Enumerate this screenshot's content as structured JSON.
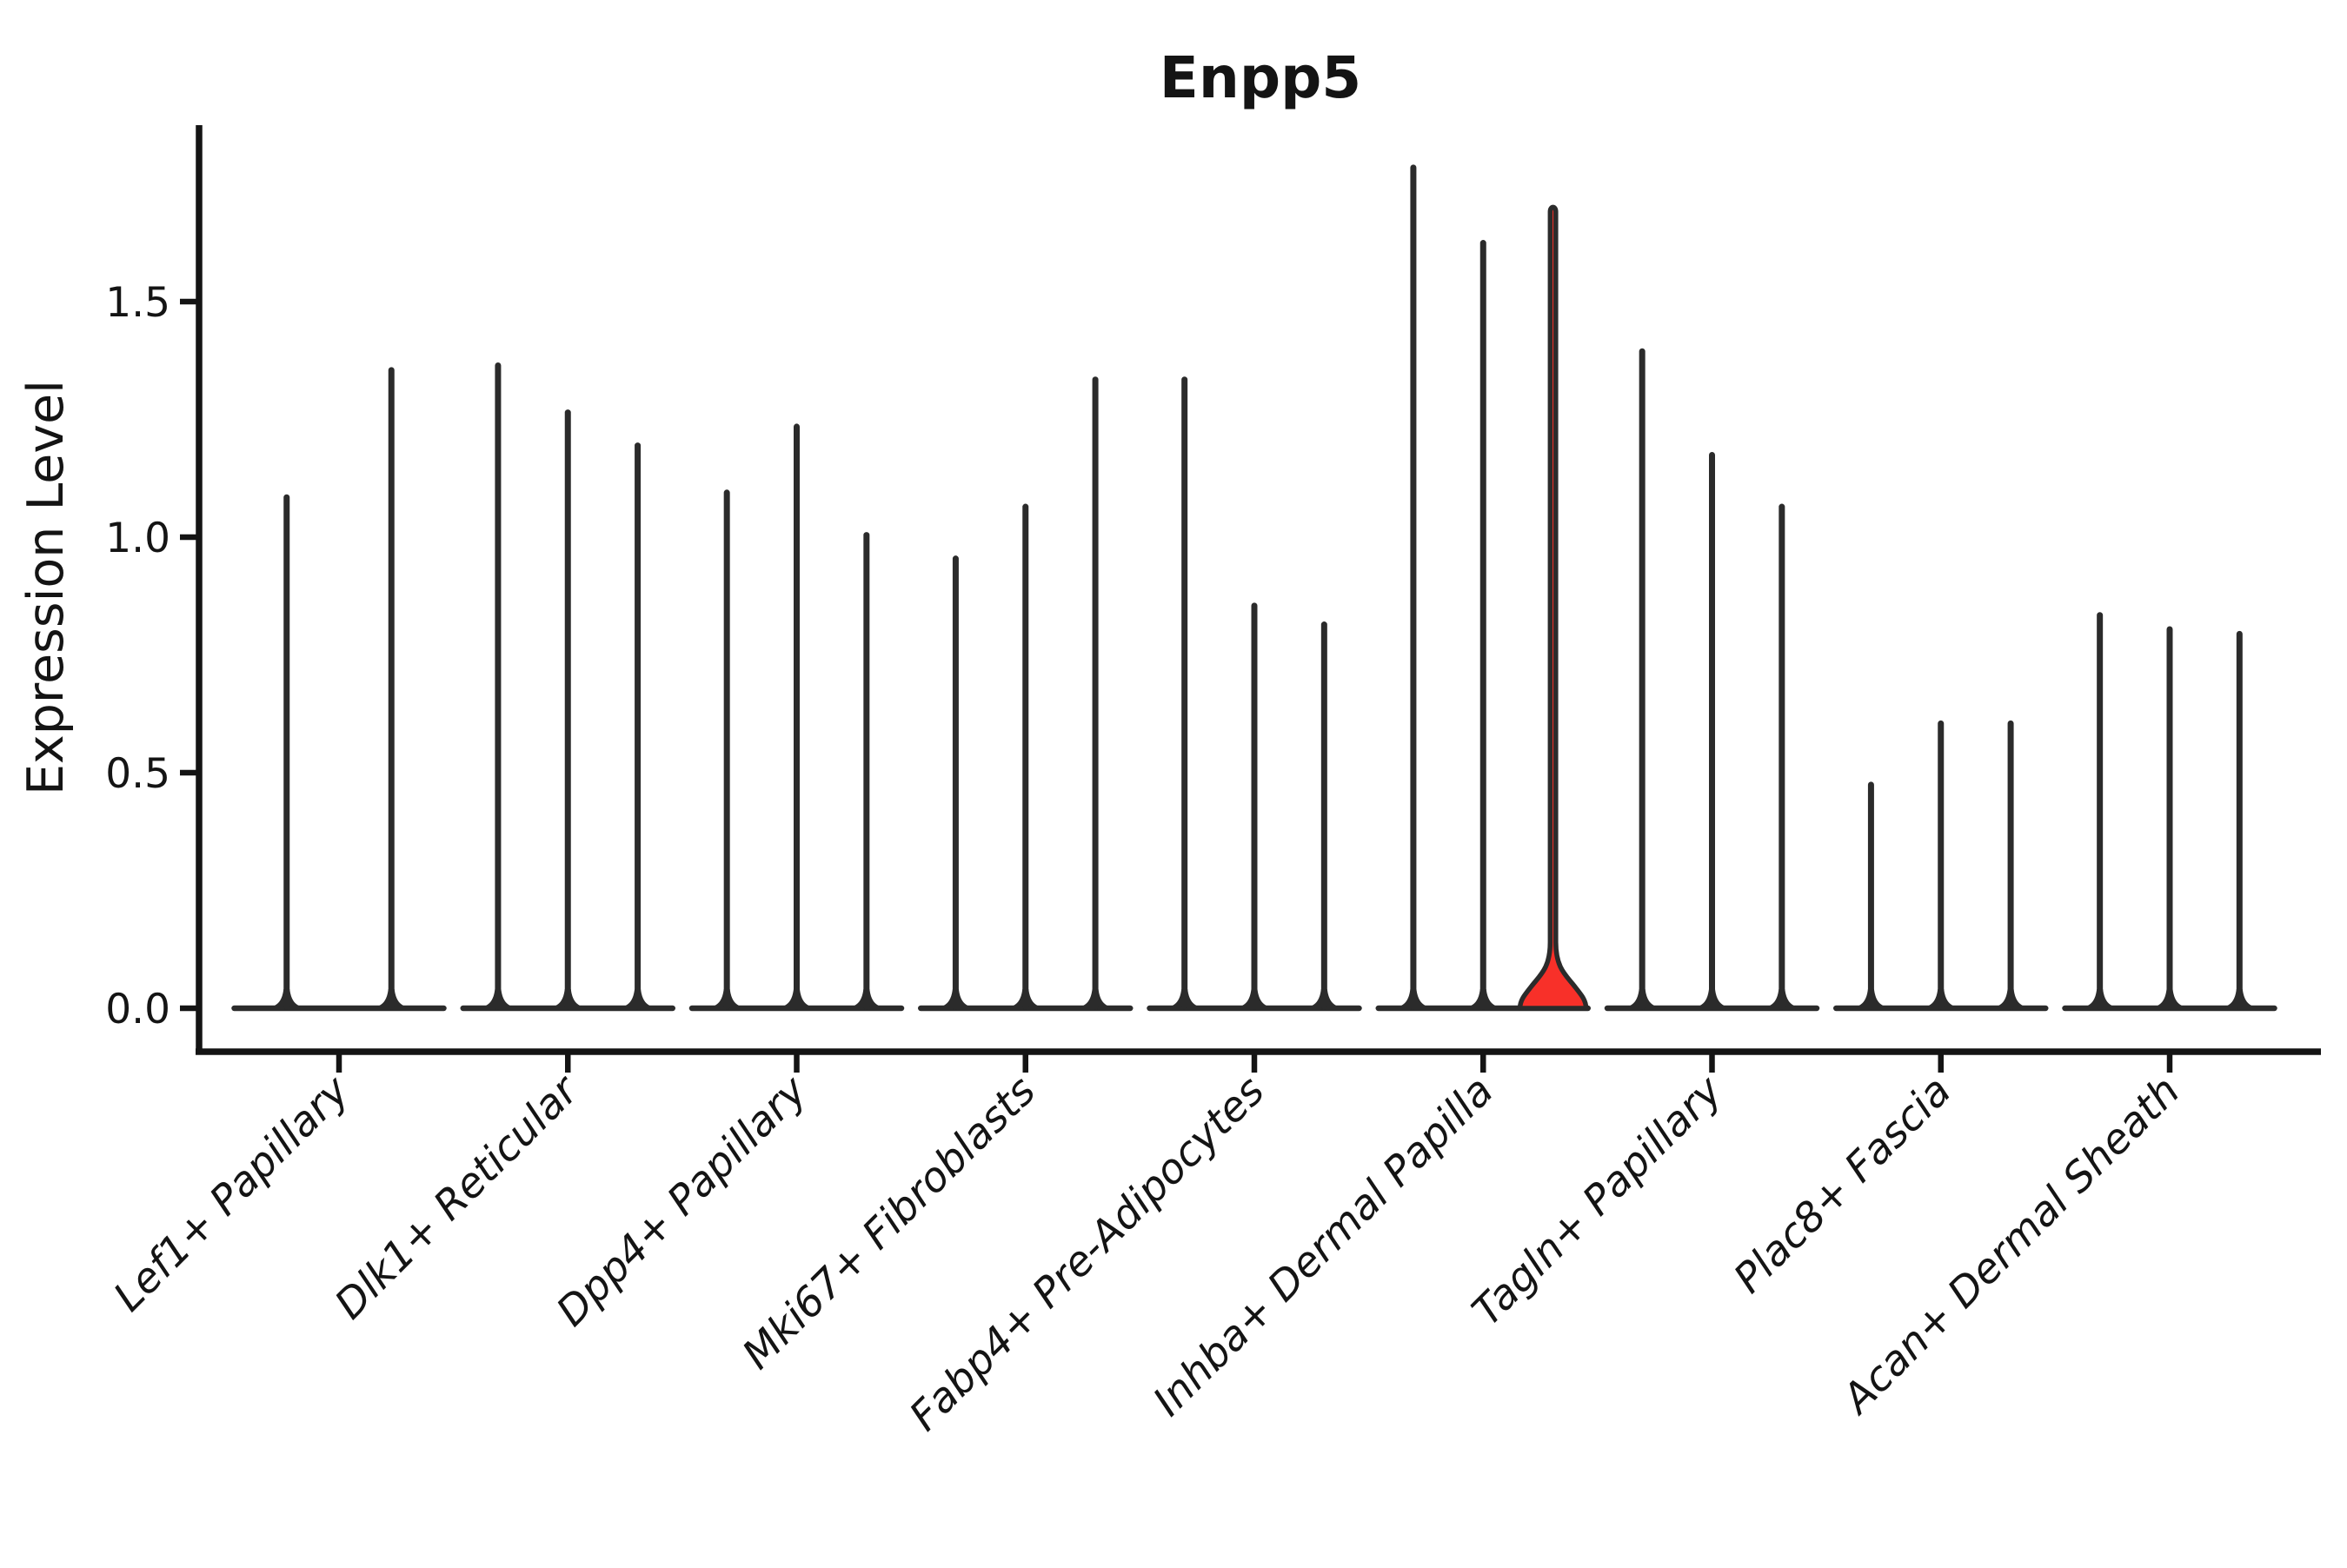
{
  "chart_data": {
    "type": "violin",
    "title": "Enpp5",
    "ylabel": "Expression Level",
    "xlabel": "",
    "ylim": [
      0,
      1.875
    ],
    "grid": false,
    "legend_position": "none",
    "yticks": [
      {
        "value": 0.0,
        "label": "0.0"
      },
      {
        "value": 0.5,
        "label": "0.5"
      },
      {
        "value": 1.0,
        "label": "1.0"
      },
      {
        "value": 1.5,
        "label": "1.5"
      }
    ],
    "colors": {
      "axis": "#141414",
      "text": "#141414",
      "violin_outline": "#2b2b2b",
      "violin_fill": "#ffffff",
      "highlight_fill": "#f83029",
      "background": "#ffffff"
    },
    "groups": [
      {
        "label": "Lef1+ Papillary",
        "violins": [
          {
            "max_expression": 1.09
          },
          {
            "max_expression": 1.36
          }
        ]
      },
      {
        "label": "Dlk1+ Reticular",
        "violins": [
          {
            "max_expression": 1.37
          },
          {
            "max_expression": 1.27
          },
          {
            "max_expression": 1.2
          }
        ]
      },
      {
        "label": "Dpp4+ Papillary",
        "violins": [
          {
            "max_expression": 1.1
          },
          {
            "max_expression": 1.24
          },
          {
            "max_expression": 1.01
          }
        ]
      },
      {
        "label": "Mki67+ Fibroblasts",
        "violins": [
          {
            "max_expression": 0.96
          },
          {
            "max_expression": 1.07
          },
          {
            "max_expression": 1.34
          }
        ]
      },
      {
        "label": "Fabp4+ Pre-Adipocytes",
        "violins": [
          {
            "max_expression": 1.34
          },
          {
            "max_expression": 0.86
          },
          {
            "max_expression": 0.82
          }
        ]
      },
      {
        "label": "Inhba+ Dermal Papilla",
        "violins": [
          {
            "max_expression": 1.79
          },
          {
            "max_expression": 1.63
          },
          {
            "max_expression": 1.7,
            "highlight": true,
            "bell_height": 0.14,
            "bell_halfwidth": 38
          }
        ]
      },
      {
        "label": "Tagln+ Papillary",
        "violins": [
          {
            "max_expression": 1.4
          },
          {
            "max_expression": 1.18
          },
          {
            "max_expression": 1.07
          }
        ]
      },
      {
        "label": "Plac8+ Fascia",
        "violins": [
          {
            "max_expression": 0.48
          },
          {
            "max_expression": 0.61
          },
          {
            "max_expression": 0.61
          }
        ]
      },
      {
        "label": "Acan+ Dermal Sheath",
        "violins": [
          {
            "max_expression": 0.84
          },
          {
            "max_expression": 0.81
          },
          {
            "max_expression": 0.8
          }
        ]
      }
    ]
  }
}
